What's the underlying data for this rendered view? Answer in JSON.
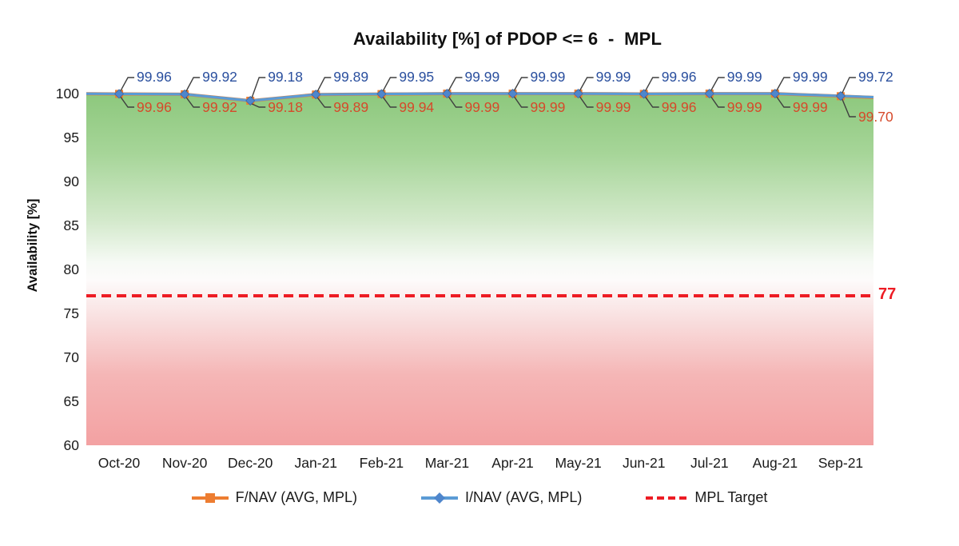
{
  "title": "Availability [%] of PDOP <= 6  -  MPL",
  "y_axis_title": "Availability [%]",
  "legend": {
    "fnav_label": "F/NAV (AVG, MPL)",
    "inav_label": "I/NAV (AVG, MPL)",
    "target_label": "MPL Target"
  },
  "colors": {
    "fnav_line": "#ED7D31",
    "inav_line": "#5B9BD5",
    "inav_marker": "#4f86cc",
    "target_line": "#ED1C24",
    "fnav_label_text": "#d6492a",
    "inav_label_text": "#2a4f9e",
    "gradient_top_green": "#8dc87d",
    "gradient_bottom_pink": "#f3a1a2",
    "leader_line": "#3f3f3f",
    "axis_text": "#1a1a1a"
  },
  "chart_data": {
    "type": "line",
    "title": "Availability [%] of PDOP <= 6  -  MPL",
    "xlabel": "",
    "ylabel": "Availability [%]",
    "categories": [
      "Oct-20",
      "Nov-20",
      "Dec-20",
      "Jan-21",
      "Feb-21",
      "Mar-21",
      "Apr-21",
      "May-21",
      "Jun-21",
      "Jul-21",
      "Aug-21",
      "Sep-21"
    ],
    "series": [
      {
        "name": "F/NAV (AVG, MPL)",
        "marker": "square",
        "color": "#ED7D31",
        "values": [
          99.96,
          99.92,
          99.18,
          99.89,
          99.94,
          99.99,
          99.99,
          99.99,
          99.96,
          99.99,
          99.99,
          99.7
        ]
      },
      {
        "name": "I/NAV (AVG, MPL)",
        "marker": "diamond",
        "color": "#5B9BD5",
        "values": [
          99.96,
          99.92,
          99.18,
          99.89,
          99.95,
          99.99,
          99.99,
          99.99,
          99.96,
          99.99,
          99.99,
          99.72
        ]
      }
    ],
    "target": {
      "name": "MPL Target",
      "value": 77,
      "label": "77",
      "color": "#ED1C24"
    },
    "ylim": [
      60,
      100
    ],
    "yticks": [
      100,
      95,
      90,
      85,
      80,
      75,
      70,
      65,
      60
    ],
    "grid": false,
    "legend_position": "bottom",
    "data_labels": true,
    "plot_background": "vertical gradient green(top)-white-pink(bottom)"
  }
}
